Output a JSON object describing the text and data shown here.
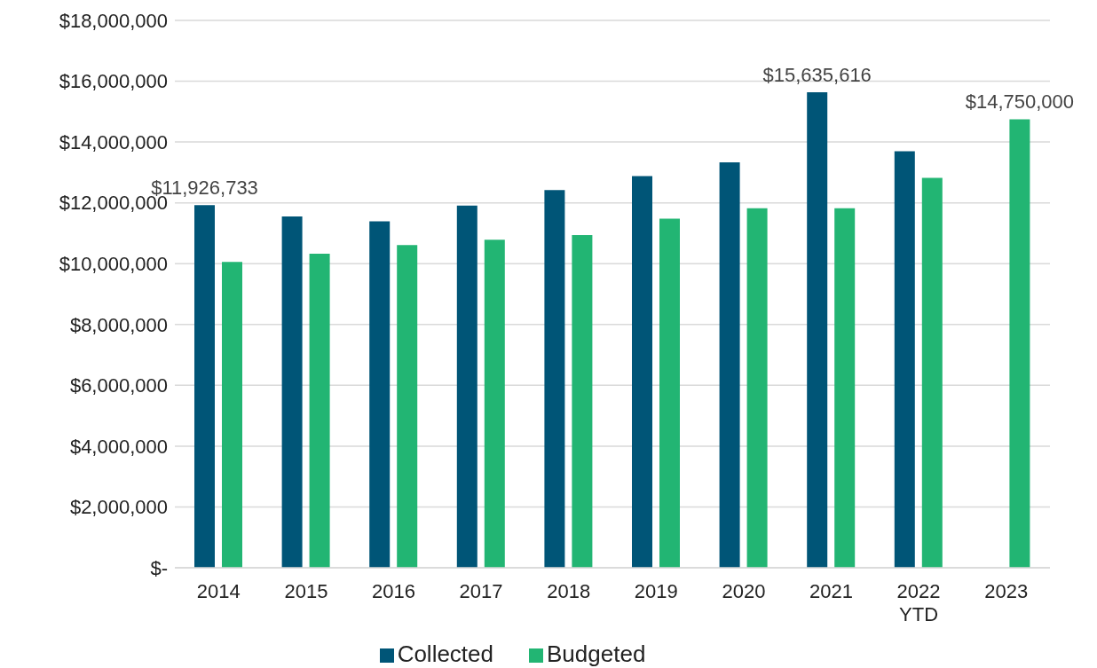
{
  "chart_data": {
    "type": "bar",
    "categories": [
      "2014",
      "2015",
      "2016",
      "2017",
      "2018",
      "2019",
      "2020",
      "2021",
      "2022\nYTD",
      "2023"
    ],
    "series": [
      {
        "name": "Collected",
        "color": "#005577",
        "values": [
          11926733,
          11550000,
          11390000,
          11910000,
          12420000,
          12880000,
          13330000,
          15635616,
          13700000,
          null
        ],
        "value_labels": [
          "$11,926,733",
          null,
          null,
          null,
          null,
          null,
          null,
          "$15,635,616",
          null,
          null
        ]
      },
      {
        "name": "Budgeted",
        "color": "#22b573",
        "values": [
          10060000,
          10330000,
          10610000,
          10790000,
          10940000,
          11480000,
          11820000,
          11820000,
          12820000,
          14750000
        ],
        "value_labels": [
          null,
          null,
          null,
          null,
          null,
          null,
          null,
          null,
          null,
          "$14,750,000"
        ]
      }
    ],
    "ylim": [
      0,
      18000000
    ],
    "yticks": [
      {
        "value": 0,
        "label": "$-"
      },
      {
        "value": 2000000,
        "label": "$2,000,000"
      },
      {
        "value": 4000000,
        "label": "$4,000,000"
      },
      {
        "value": 6000000,
        "label": "$6,000,000"
      },
      {
        "value": 8000000,
        "label": "$8,000,000"
      },
      {
        "value": 10000000,
        "label": "$10,000,000"
      },
      {
        "value": 12000000,
        "label": "$12,000,000"
      },
      {
        "value": 14000000,
        "label": "$14,000,000"
      },
      {
        "value": 16000000,
        "label": "$16,000,000"
      },
      {
        "value": 18000000,
        "label": "$18,000,000"
      }
    ],
    "grid": "y",
    "legend": "bottom"
  }
}
